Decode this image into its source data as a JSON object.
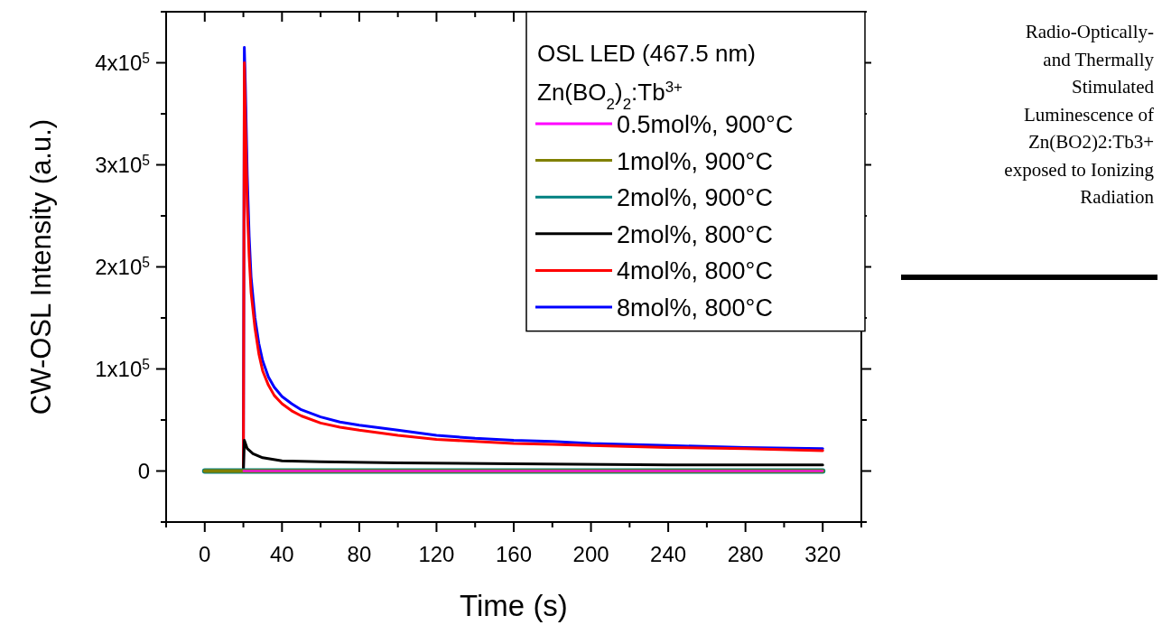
{
  "chart_data": {
    "type": "line",
    "xlabel": "Time (s)",
    "ylabel": "CW-OSL Intensity (a.u.)",
    "legend_title": "OSL LED (467.5 nm)\nZn(BO$_{2}$)$_{2}$:Tb$^{3+}$",
    "legend": "top right",
    "line_style": "solid",
    "xlim": [
      -20,
      340
    ],
    "ylim": [
      -50000,
      450000
    ],
    "xticks": [
      {
        "value": -20,
        "label": null
      },
      0,
      {
        "value": 20,
        "label": null
      },
      40,
      {
        "value": 60,
        "label": null
      },
      80,
      {
        "value": 100,
        "label": null
      },
      120,
      {
        "value": 140,
        "label": null
      },
      160,
      {
        "value": 180,
        "label": null
      },
      200,
      {
        "value": 220,
        "label": null
      },
      240,
      {
        "value": 260,
        "label": null
      },
      280,
      {
        "value": 300,
        "label": null
      },
      320,
      {
        "value": 340,
        "label": null
      }
    ],
    "yticks": [
      {
        "value": -50000,
        "label": null
      },
      0,
      {
        "value": 50000,
        "label": null
      },
      {
        "value": 100000,
        "label": "1x10$^{5}$"
      },
      {
        "value": 150000,
        "label": null
      },
      {
        "value": 200000,
        "label": "2x10$^{5}$"
      },
      {
        "value": 250000,
        "label": null
      },
      {
        "value": 300000,
        "label": "3x10$^{5}$"
      },
      {
        "value": 350000,
        "label": null
      },
      {
        "value": 400000,
        "label": "4x10$^{5}$"
      },
      {
        "value": 450000,
        "label": null
      }
    ],
    "series": [
      {
        "name": "0.5mol%, 900°C",
        "color": "#ff00ff",
        "x": [
          20,
          320
        ],
        "values": [
          0,
          0
        ]
      },
      {
        "name": "1mol%, 900°C",
        "color": "#808000",
        "x": [
          0,
          320
        ],
        "values": [
          0,
          0
        ]
      },
      {
        "name": "2mol%, 900°C",
        "color": "#008080",
        "x": [
          0,
          320
        ],
        "values": [
          0,
          0
        ]
      },
      {
        "name": "2mol%, 800°C",
        "color": "#000000",
        "x": [
          20,
          20.5,
          22,
          25,
          30,
          40,
          60,
          100,
          160,
          240,
          320
        ],
        "values": [
          0,
          30000,
          22000,
          17000,
          13000,
          10000,
          9000,
          8000,
          7000,
          6000,
          6000
        ]
      },
      {
        "name": "4mol%, 800°C",
        "color": "#ff0000",
        "x": [
          20,
          20.5,
          21,
          22,
          23,
          24,
          26,
          28,
          30,
          33,
          36,
          40,
          45,
          50,
          60,
          70,
          80,
          100,
          120,
          140,
          160,
          180,
          200,
          240,
          280,
          320
        ],
        "values": [
          0,
          400000,
          350000,
          260000,
          210000,
          175000,
          140000,
          115000,
          98000,
          84000,
          74000,
          66000,
          59000,
          54000,
          47000,
          43000,
          40000,
          35000,
          31000,
          29000,
          27000,
          26000,
          25000,
          23000,
          22000,
          20000
        ]
      },
      {
        "name": "8mol%, 800°C",
        "color": "#0000ff",
        "x": [
          20,
          20.5,
          21,
          22,
          23,
          24,
          26,
          28,
          30,
          33,
          36,
          40,
          45,
          50,
          60,
          70,
          80,
          100,
          120,
          140,
          160,
          180,
          200,
          240,
          280,
          320
        ],
        "values": [
          0,
          415000,
          380000,
          290000,
          230000,
          190000,
          150000,
          125000,
          108000,
          92000,
          82000,
          73000,
          66000,
          60000,
          53000,
          48000,
          45000,
          40000,
          35000,
          32000,
          30000,
          29000,
          27000,
          25000,
          23000,
          22000
        ]
      }
    ],
    "annotations": [
      "Radio-Optically-\nand Thermally\nStimulated\nLuminescence of\nZn(BO2)2:Tb3+\nexposed to Ionizing\nRadiation"
    ]
  }
}
